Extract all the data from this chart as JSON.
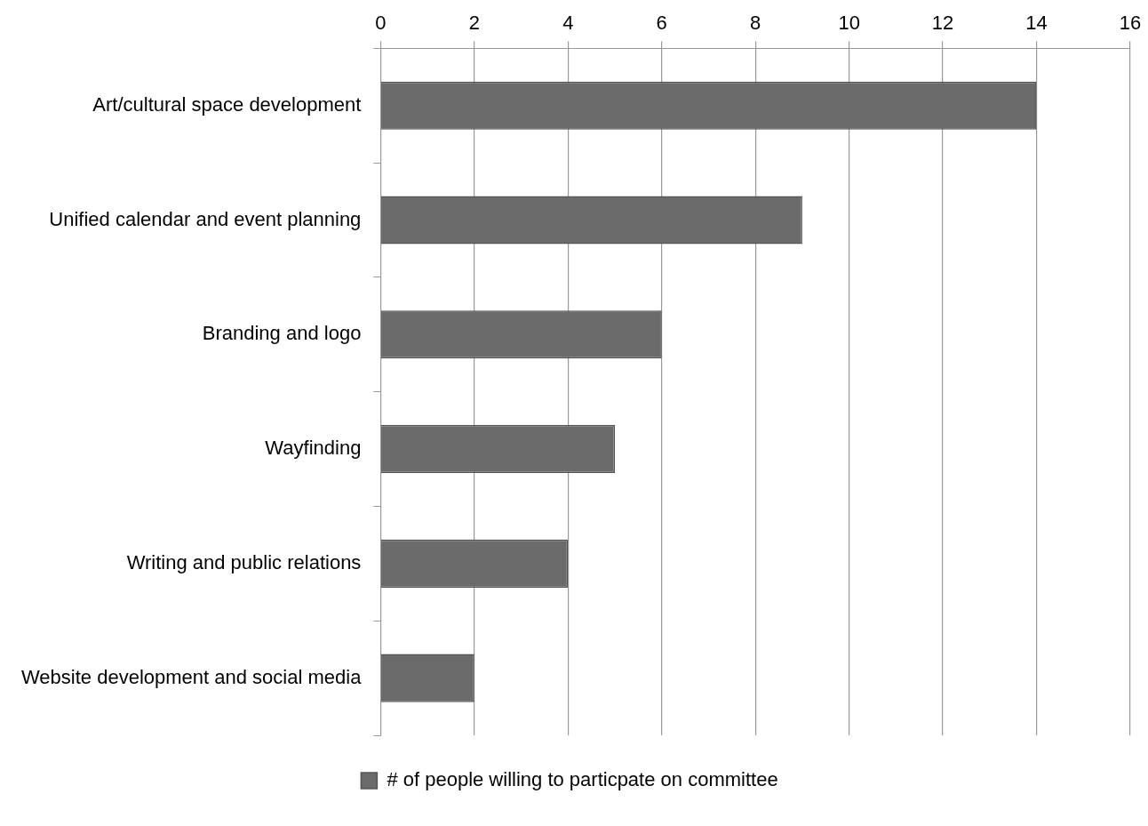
{
  "chart_data": {
    "type": "bar",
    "orientation": "horizontal",
    "categories": [
      "Art/cultural space development",
      "Unified calendar and event planning",
      "Branding and logo",
      "Wayfinding",
      "Writing and public relations",
      "Website development and social media"
    ],
    "series": [
      {
        "name": "# of people willing to particpate on committee",
        "color": "#6b6b6b",
        "values": [
          14,
          9,
          6,
          5,
          4,
          2
        ]
      }
    ],
    "xlim": [
      0,
      16
    ],
    "xticks": [
      0,
      2,
      4,
      6,
      8,
      10,
      12,
      14,
      16
    ],
    "grid": "x",
    "legend": "bottom"
  }
}
